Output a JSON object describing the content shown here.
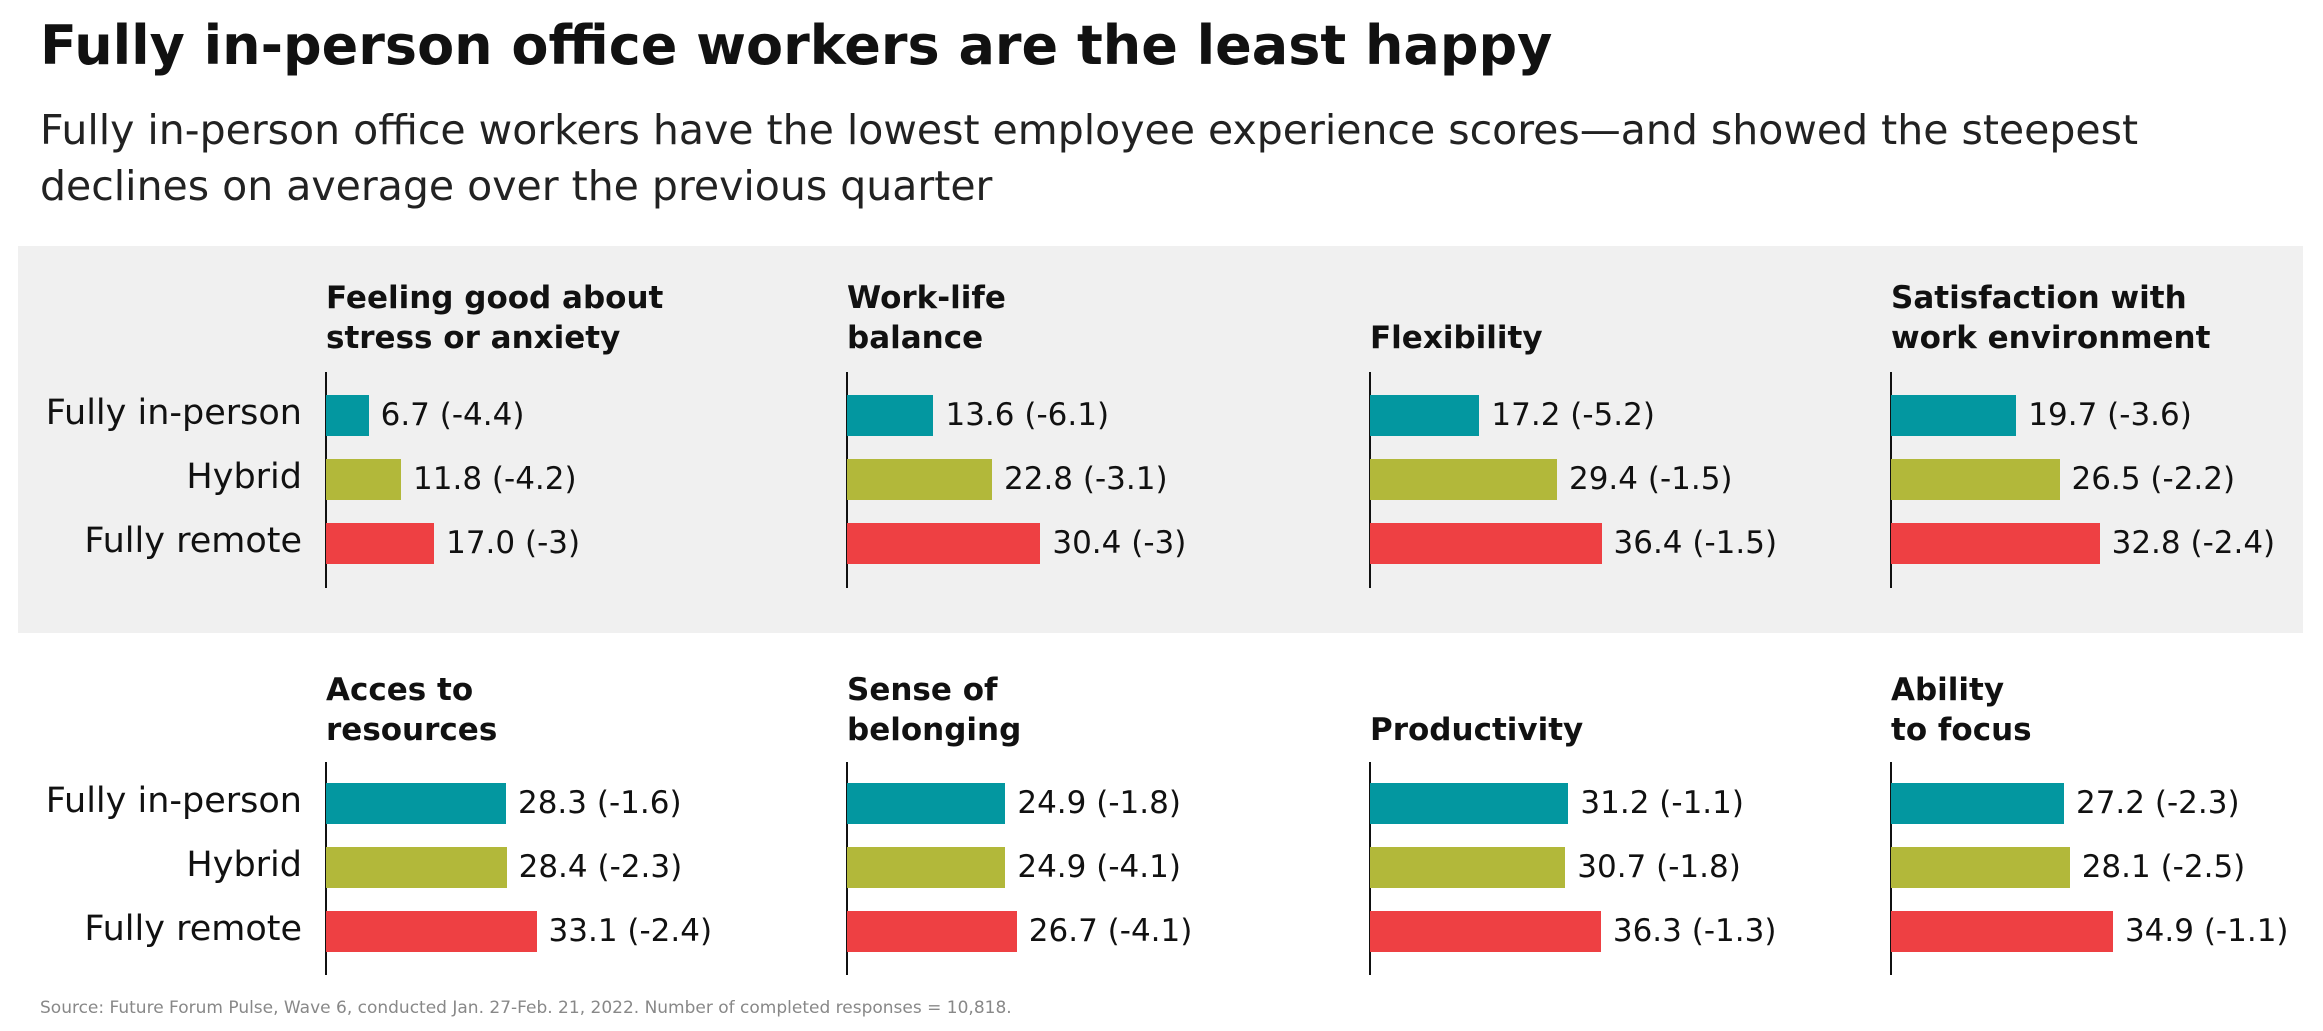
{
  "title": "Fully in-person office workers are the least happy",
  "subtitle": "Fully in-person office workers have the lowest employee experience scores—and showed the steepest declines on average over the previous quarter",
  "source": "Source: Future Forum Pulse, Wave 6, conducted Jan. 27-Feb. 21, 2022. Number of completed responses = 10,818.",
  "categories": [
    "Fully in-person",
    "Hybrid",
    "Fully remote"
  ],
  "colors": [
    "#0397a0",
    "#b2b83a",
    "#ee4043"
  ],
  "chart_data": [
    {
      "type": "bar",
      "title": "Feeling good about\nstress or anxiety",
      "values": [
        6.7,
        11.8,
        17.0
      ],
      "value_labels": [
        "6.7 (-4.4)",
        "11.8 (-4.2)",
        "17.0 (-3)"
      ]
    },
    {
      "type": "bar",
      "title": "Work-life\nbalance",
      "values": [
        13.6,
        22.8,
        30.4
      ],
      "value_labels": [
        "13.6 (-6.1)",
        "22.8 (-3.1)",
        "30.4 (-3)"
      ]
    },
    {
      "type": "bar",
      "title": "Flexibility",
      "values": [
        17.2,
        29.4,
        36.4
      ],
      "value_labels": [
        "17.2 (-5.2)",
        "29.4 (-1.5)",
        "36.4 (-1.5)"
      ]
    },
    {
      "type": "bar",
      "title": "Satisfaction with\nwork environment",
      "values": [
        19.7,
        26.5,
        32.8
      ],
      "value_labels": [
        "19.7 (-3.6)",
        "26.5 (-2.2)",
        "32.8 (-2.4)"
      ]
    },
    {
      "type": "bar",
      "title": "Acces to\nresources",
      "values": [
        28.3,
        28.4,
        33.1
      ],
      "value_labels": [
        "28.3 (-1.6)",
        "28.4 (-2.3)",
        "33.1 (-2.4)"
      ]
    },
    {
      "type": "bar",
      "title": "Sense of\nbelonging",
      "values": [
        24.9,
        24.9,
        26.7
      ],
      "value_labels": [
        "24.9 (-1.8)",
        "24.9 (-4.1)",
        "26.7 (-4.1)"
      ]
    },
    {
      "type": "bar",
      "title": "Productivity",
      "values": [
        31.2,
        30.7,
        36.3
      ],
      "value_labels": [
        "31.2 (-1.1)",
        "30.7 (-1.8)",
        "36.3 (-1.3)"
      ]
    },
    {
      "type": "bar",
      "title": "Ability\nto focus",
      "values": [
        27.2,
        28.1,
        34.9
      ],
      "value_labels": [
        "27.2 (-2.3)",
        "28.1 (-2.5)",
        "34.9 (-1.1)"
      ]
    }
  ]
}
